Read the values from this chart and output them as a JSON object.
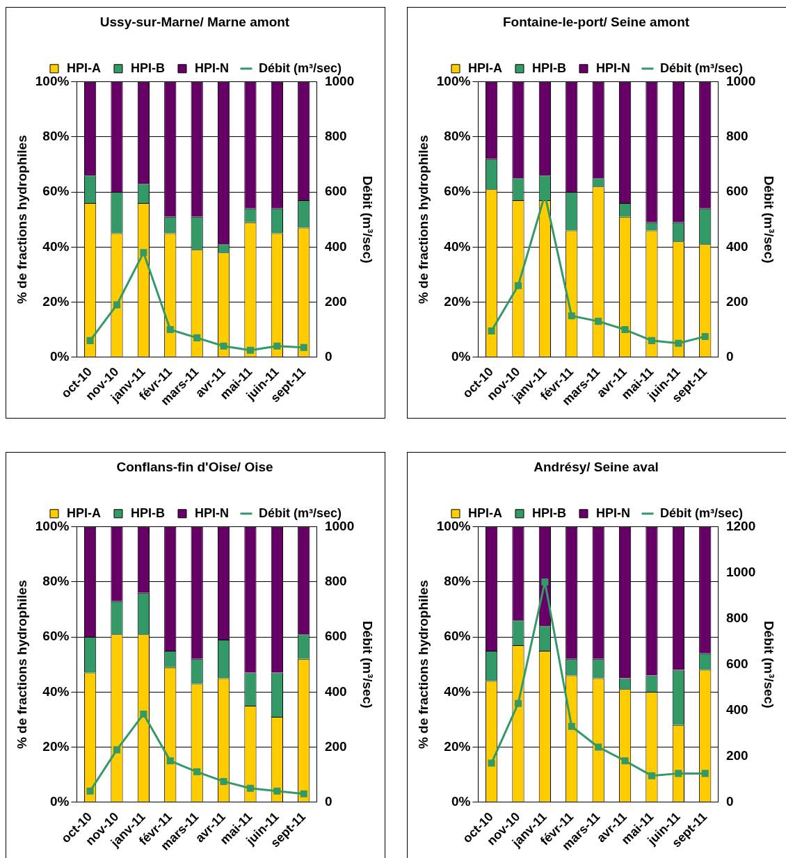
{
  "chart_data": [
    {
      "type": "bar",
      "title": "Ussy-sur-Marne/ Marne amont",
      "ylabel": "% de fractions hydrophiles",
      "y2label": "Débit (m³/sec)",
      "categories": [
        "oct-10",
        "nov-10",
        "janv-11",
        "févr-11",
        "mars-11",
        "avr-11",
        "mai-11",
        "juin-11",
        "sept-11"
      ],
      "stacked": true,
      "grid": "y",
      "legend": "top",
      "ylim": [
        0,
        100
      ],
      "yticks": [
        {
          "value": 0,
          "label": "0%"
        },
        {
          "value": 20,
          "label": "20%"
        },
        {
          "value": 40,
          "label": "40%"
        },
        {
          "value": 60,
          "label": "60%"
        },
        {
          "value": 80,
          "label": "80%"
        },
        {
          "value": 100,
          "label": "100%"
        }
      ],
      "y2lim": [
        0,
        1000
      ],
      "y2ticks": [
        0,
        200,
        400,
        600,
        800,
        1000
      ],
      "series": [
        {
          "name": "HPI-A",
          "color": "#ffcc00",
          "values": [
            56,
            45,
            56,
            45,
            39,
            38,
            49,
            45,
            47
          ]
        },
        {
          "name": "HPI-B",
          "color": "#339966",
          "values": [
            10,
            15,
            7,
            6,
            12,
            3,
            5,
            9,
            10
          ]
        },
        {
          "name": "HPI-N",
          "color": "#660066",
          "values": [
            34,
            40,
            37,
            49,
            49,
            59,
            46,
            46,
            43
          ]
        },
        {
          "name": "Débit (m³/sec)",
          "type": "line",
          "axis": "y2",
          "marker": "square",
          "color": "#339966",
          "values": [
            60,
            190,
            380,
            100,
            70,
            40,
            25,
            40,
            35
          ]
        }
      ]
    },
    {
      "type": "bar",
      "title": "Fontaine-le-port/ Seine amont",
      "ylabel": "% de fractions hydrophiles",
      "y2label": "Débit (m³/sec)",
      "categories": [
        "oct-10",
        "nov-10",
        "janv-11",
        "févr-11",
        "mars-11",
        "avr-11",
        "mai-11",
        "juin-11",
        "sept-11"
      ],
      "stacked": true,
      "grid": "y",
      "legend": "top",
      "ylim": [
        0,
        100
      ],
      "yticks": [
        {
          "value": 0,
          "label": "0%"
        },
        {
          "value": 20,
          "label": "20%"
        },
        {
          "value": 40,
          "label": "40%"
        },
        {
          "value": 60,
          "label": "60%"
        },
        {
          "value": 80,
          "label": "80%"
        },
        {
          "value": 100,
          "label": "100%"
        }
      ],
      "y2lim": [
        0,
        1000
      ],
      "y2ticks": [
        0,
        200,
        400,
        600,
        800,
        1000
      ],
      "series": [
        {
          "name": "HPI-A",
          "color": "#ffcc00",
          "values": [
            61,
            57,
            57,
            46,
            62,
            51,
            46,
            42,
            41
          ]
        },
        {
          "name": "HPI-B",
          "color": "#339966",
          "values": [
            11,
            8,
            9,
            14,
            3,
            5,
            3,
            7,
            13
          ]
        },
        {
          "name": "HPI-N",
          "color": "#660066",
          "values": [
            28,
            35,
            34,
            40,
            35,
            44,
            51,
            51,
            46
          ]
        },
        {
          "name": "Débit (m³/sec)",
          "type": "line",
          "axis": "y2",
          "marker": "square",
          "color": "#339966",
          "values": [
            95,
            260,
            590,
            150,
            130,
            100,
            60,
            50,
            75
          ]
        }
      ]
    },
    {
      "type": "bar",
      "title": "Conflans-fin d'Oise/ Oise",
      "ylabel": "% de fractions hydrophiles",
      "y2label": "Débit (m³/sec)",
      "categories": [
        "oct-10",
        "nov-10",
        "janv-11",
        "févr-11",
        "mars-11",
        "avr-11",
        "mai-11",
        "juin-11",
        "sept-11"
      ],
      "stacked": true,
      "grid": "y",
      "legend": "top",
      "ylim": [
        0,
        100
      ],
      "yticks": [
        {
          "value": 0,
          "label": "0%"
        },
        {
          "value": 20,
          "label": "20%"
        },
        {
          "value": 40,
          "label": "40%"
        },
        {
          "value": 60,
          "label": "60%"
        },
        {
          "value": 80,
          "label": "80%"
        },
        {
          "value": 100,
          "label": "100%"
        }
      ],
      "y2lim": [
        0,
        1000
      ],
      "y2ticks": [
        0,
        200,
        400,
        600,
        800,
        1000
      ],
      "series": [
        {
          "name": "HPI-A",
          "color": "#ffcc00",
          "values": [
            47,
            61,
            61,
            49,
            43,
            45,
            35,
            31,
            52
          ]
        },
        {
          "name": "HPI-B",
          "color": "#339966",
          "values": [
            13,
            12,
            15,
            6,
            9,
            14,
            12,
            16,
            9
          ]
        },
        {
          "name": "HPI-N",
          "color": "#660066",
          "values": [
            40,
            27,
            24,
            45,
            48,
            41,
            53,
            53,
            39
          ]
        },
        {
          "name": "Débit (m³/sec)",
          "type": "line",
          "axis": "y2",
          "marker": "square",
          "color": "#339966",
          "values": [
            40,
            190,
            320,
            150,
            110,
            75,
            50,
            40,
            30
          ]
        }
      ]
    },
    {
      "type": "bar",
      "title": "Andrésy/ Seine aval",
      "ylabel": "% de fractions hydrophiles",
      "y2label": "Débit (m³/sec)",
      "categories": [
        "oct-10",
        "nov-10",
        "janv-11",
        "févr-11",
        "mars-11",
        "avr-11",
        "mai-11",
        "juin-11",
        "sept-11"
      ],
      "stacked": true,
      "grid": "y",
      "legend": "top",
      "ylim": [
        0,
        100
      ],
      "yticks": [
        {
          "value": 0,
          "label": "0%"
        },
        {
          "value": 20,
          "label": "20%"
        },
        {
          "value": 40,
          "label": "40%"
        },
        {
          "value": 60,
          "label": "60%"
        },
        {
          "value": 80,
          "label": "80%"
        },
        {
          "value": 100,
          "label": "100%"
        }
      ],
      "y2lim": [
        0,
        1200
      ],
      "y2ticks": [
        0,
        200,
        400,
        600,
        800,
        1000,
        1200
      ],
      "series": [
        {
          "name": "HPI-A",
          "color": "#ffcc00",
          "values": [
            44,
            57,
            55,
            46,
            45,
            41,
            40,
            28,
            48
          ]
        },
        {
          "name": "HPI-B",
          "color": "#339966",
          "values": [
            11,
            9,
            9,
            6,
            7,
            4,
            6,
            20,
            6
          ]
        },
        {
          "name": "HPI-N",
          "color": "#660066",
          "values": [
            45,
            34,
            36,
            48,
            48,
            55,
            54,
            52,
            46
          ]
        },
        {
          "name": "Débit (m³/sec)",
          "type": "line",
          "axis": "y2",
          "marker": "square",
          "color": "#339966",
          "values": [
            170,
            430,
            960,
            330,
            240,
            180,
            115,
            125,
            125
          ]
        }
      ]
    }
  ]
}
